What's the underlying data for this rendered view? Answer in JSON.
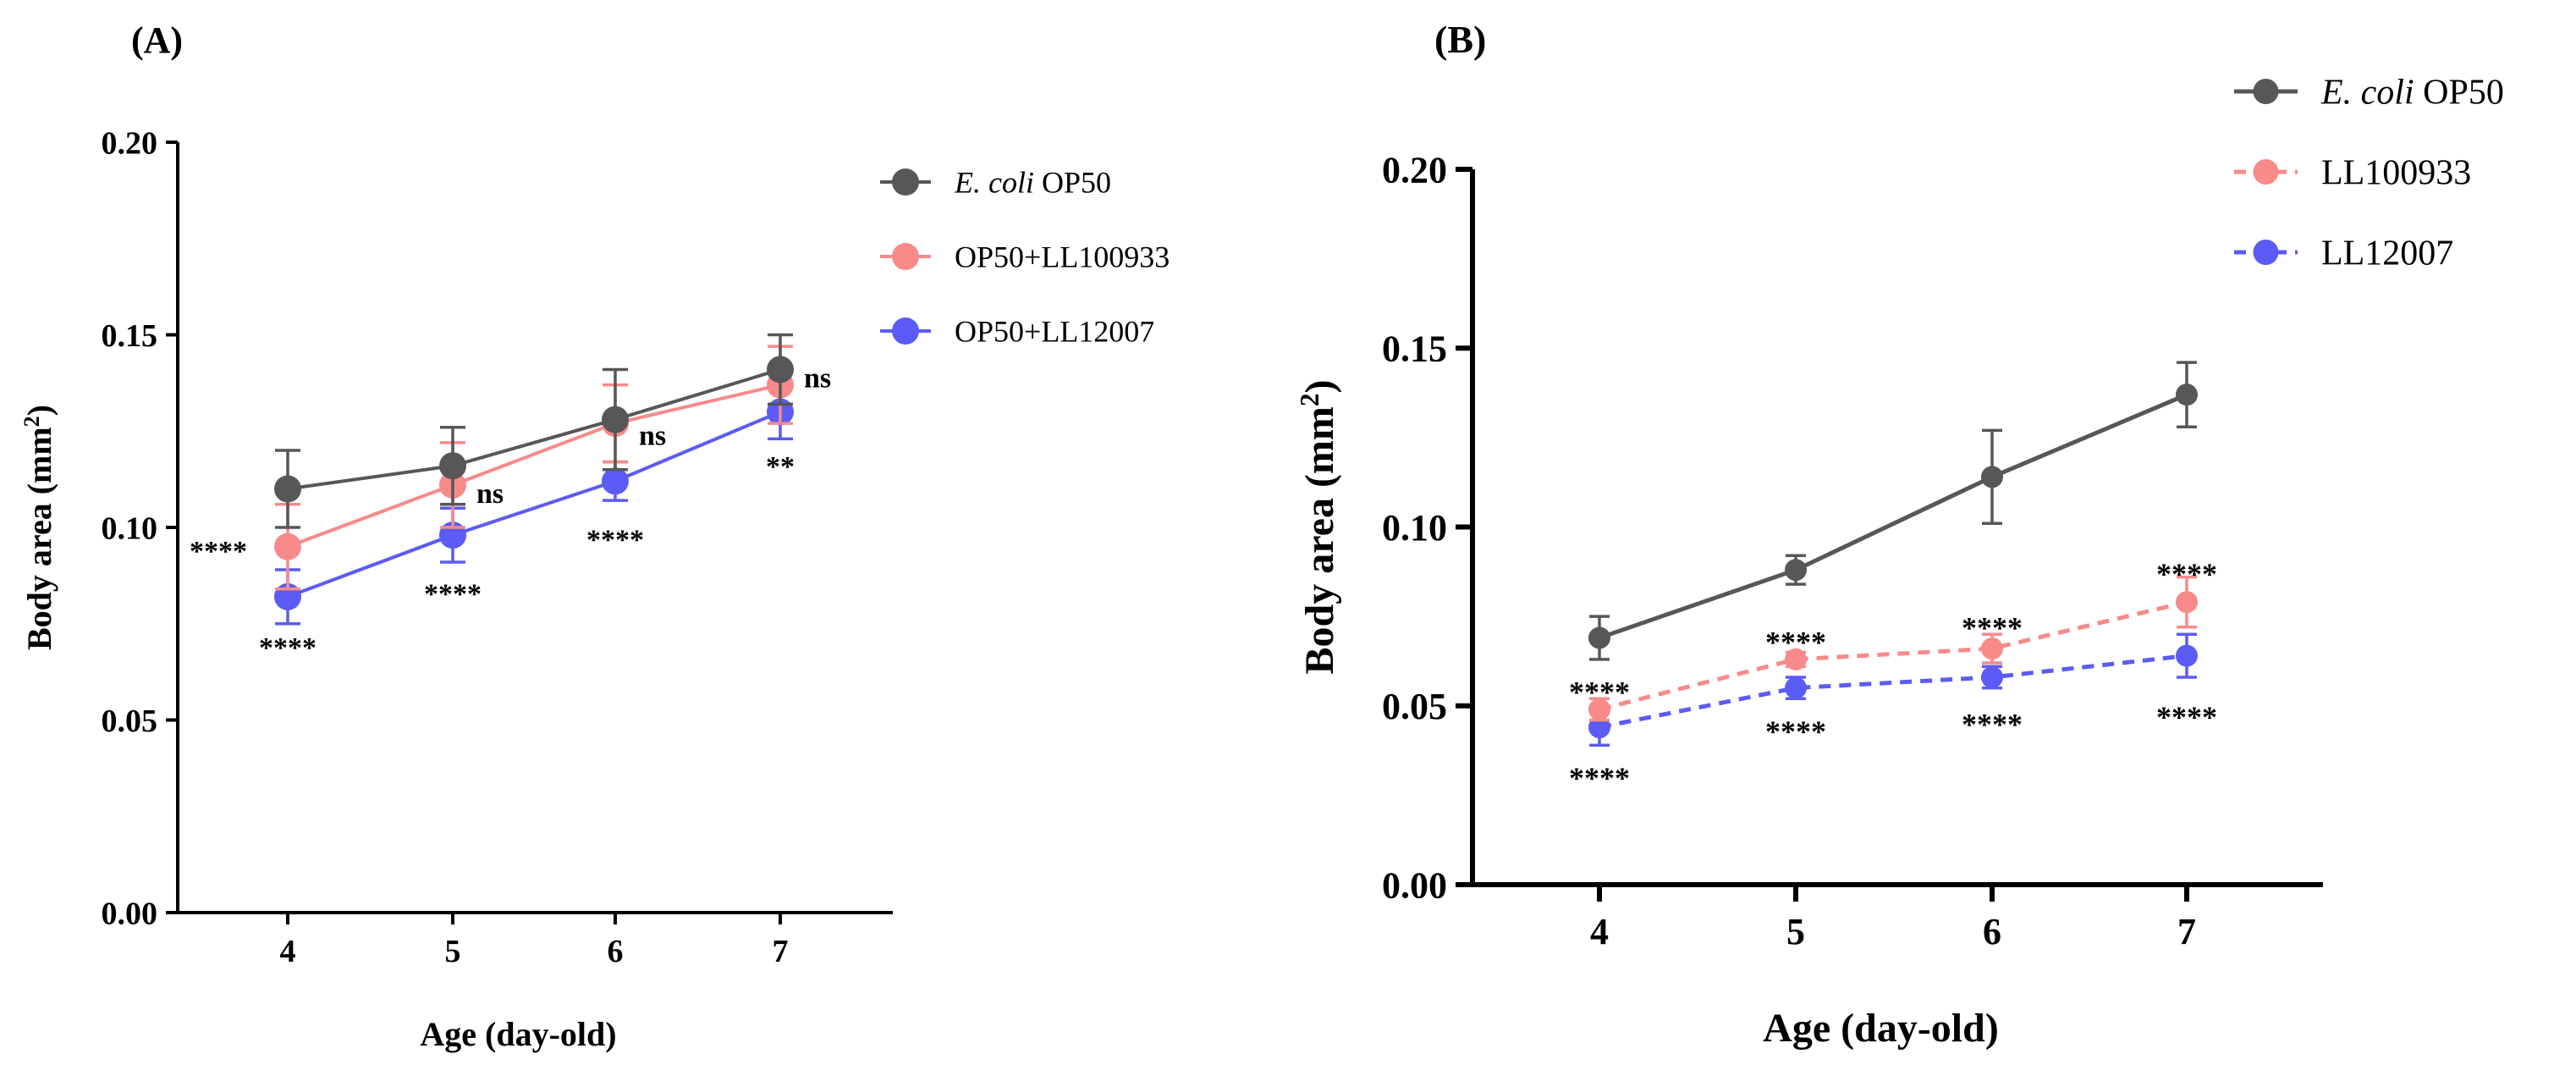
{
  "chart_data": [
    {
      "panel": "(A)",
      "type": "line",
      "xlabel": "Age (day-old)",
      "ylabel": "Body area (mm",
      "ylabel_sup": "2",
      "ylabel_close": ")",
      "categories": [
        "4",
        "5",
        "6",
        "7"
      ],
      "ylim": [
        0,
        0.2
      ],
      "yticks": [
        "0.00",
        "0.05",
        "0.10",
        "0.15",
        "0.20"
      ],
      "series": [
        {
          "name_italic": "E. coli",
          "name_rest": " OP50",
          "color": "#575757",
          "dashed": false,
          "values": [
            0.11,
            0.116,
            0.128,
            0.141
          ],
          "errors": [
            0.01,
            0.01,
            0.013,
            0.009
          ]
        },
        {
          "name_italic": "",
          "name_rest": "OP50+LL100933",
          "color": "#f88a8a",
          "dashed": false,
          "values": [
            0.095,
            0.111,
            0.127,
            0.137
          ],
          "errors": [
            0.011,
            0.011,
            0.01,
            0.01
          ]
        },
        {
          "name_italic": "",
          "name_rest": "OP50+LL12007",
          "color": "#5b5bf5",
          "dashed": false,
          "values": [
            0.082,
            0.098,
            0.112,
            0.13
          ],
          "errors": [
            0.007,
            0.007,
            0.005,
            0.007
          ]
        }
      ],
      "annotations": [
        {
          "text": "****",
          "x": "4",
          "y": 0.094,
          "anchor": "left-of-point"
        },
        {
          "text": "****",
          "x": "4",
          "y": 0.069,
          "anchor": "below"
        },
        {
          "text": "ns",
          "x": "5",
          "y": 0.109,
          "anchor": "right-of-point"
        },
        {
          "text": "****",
          "x": "5",
          "y": 0.083,
          "anchor": "below"
        },
        {
          "text": "ns",
          "x": "6",
          "y": 0.124,
          "anchor": "right-of-point"
        },
        {
          "text": "****",
          "x": "6",
          "y": 0.097,
          "anchor": "below"
        },
        {
          "text": "ns",
          "x": "7",
          "y": 0.139,
          "anchor": "right-of-point"
        },
        {
          "text": "**",
          "x": "7",
          "y": 0.116,
          "anchor": "below"
        }
      ]
    },
    {
      "panel": "(B)",
      "type": "line",
      "xlabel": "Age (day-old)",
      "ylabel": "Body area (mm",
      "ylabel_sup": "2",
      "ylabel_close": ")",
      "categories": [
        "4",
        "5",
        "6",
        "7"
      ],
      "ylim": [
        0,
        0.2
      ],
      "yticks": [
        "0.00",
        "0.05",
        "0.10",
        "0.15",
        "0.20"
      ],
      "series": [
        {
          "name_italic": "E. coli",
          "name_rest": " OP50",
          "color": "#575757",
          "dashed": false,
          "values": [
            0.069,
            0.088,
            0.114,
            0.137
          ],
          "errors": [
            0.006,
            0.004,
            0.013,
            0.009
          ]
        },
        {
          "name_italic": "",
          "name_rest": "LL100933",
          "color": "#f88a8a",
          "dashed": true,
          "values": [
            0.049,
            0.063,
            0.066,
            0.079
          ],
          "errors": [
            0.003,
            0.002,
            0.004,
            0.007
          ]
        },
        {
          "name_italic": "",
          "name_rest": "LL12007",
          "color": "#5b5bf5",
          "dashed": true,
          "values": [
            0.044,
            0.055,
            0.058,
            0.064
          ],
          "errors": [
            0.005,
            0.003,
            0.003,
            0.006
          ]
        }
      ],
      "annotations": [
        {
          "text": "****",
          "x": "4",
          "y": 0.054,
          "anchor": "above"
        },
        {
          "text": "****",
          "x": "4",
          "y": 0.03,
          "anchor": "below"
        },
        {
          "text": "****",
          "x": "5",
          "y": 0.068,
          "anchor": "above"
        },
        {
          "text": "****",
          "x": "5",
          "y": 0.043,
          "anchor": "below"
        },
        {
          "text": "****",
          "x": "6",
          "y": 0.072,
          "anchor": "above"
        },
        {
          "text": "****",
          "x": "6",
          "y": 0.045,
          "anchor": "below"
        },
        {
          "text": "****",
          "x": "7",
          "y": 0.087,
          "anchor": "above"
        },
        {
          "text": "****",
          "x": "7",
          "y": 0.047,
          "anchor": "below"
        }
      ]
    }
  ]
}
